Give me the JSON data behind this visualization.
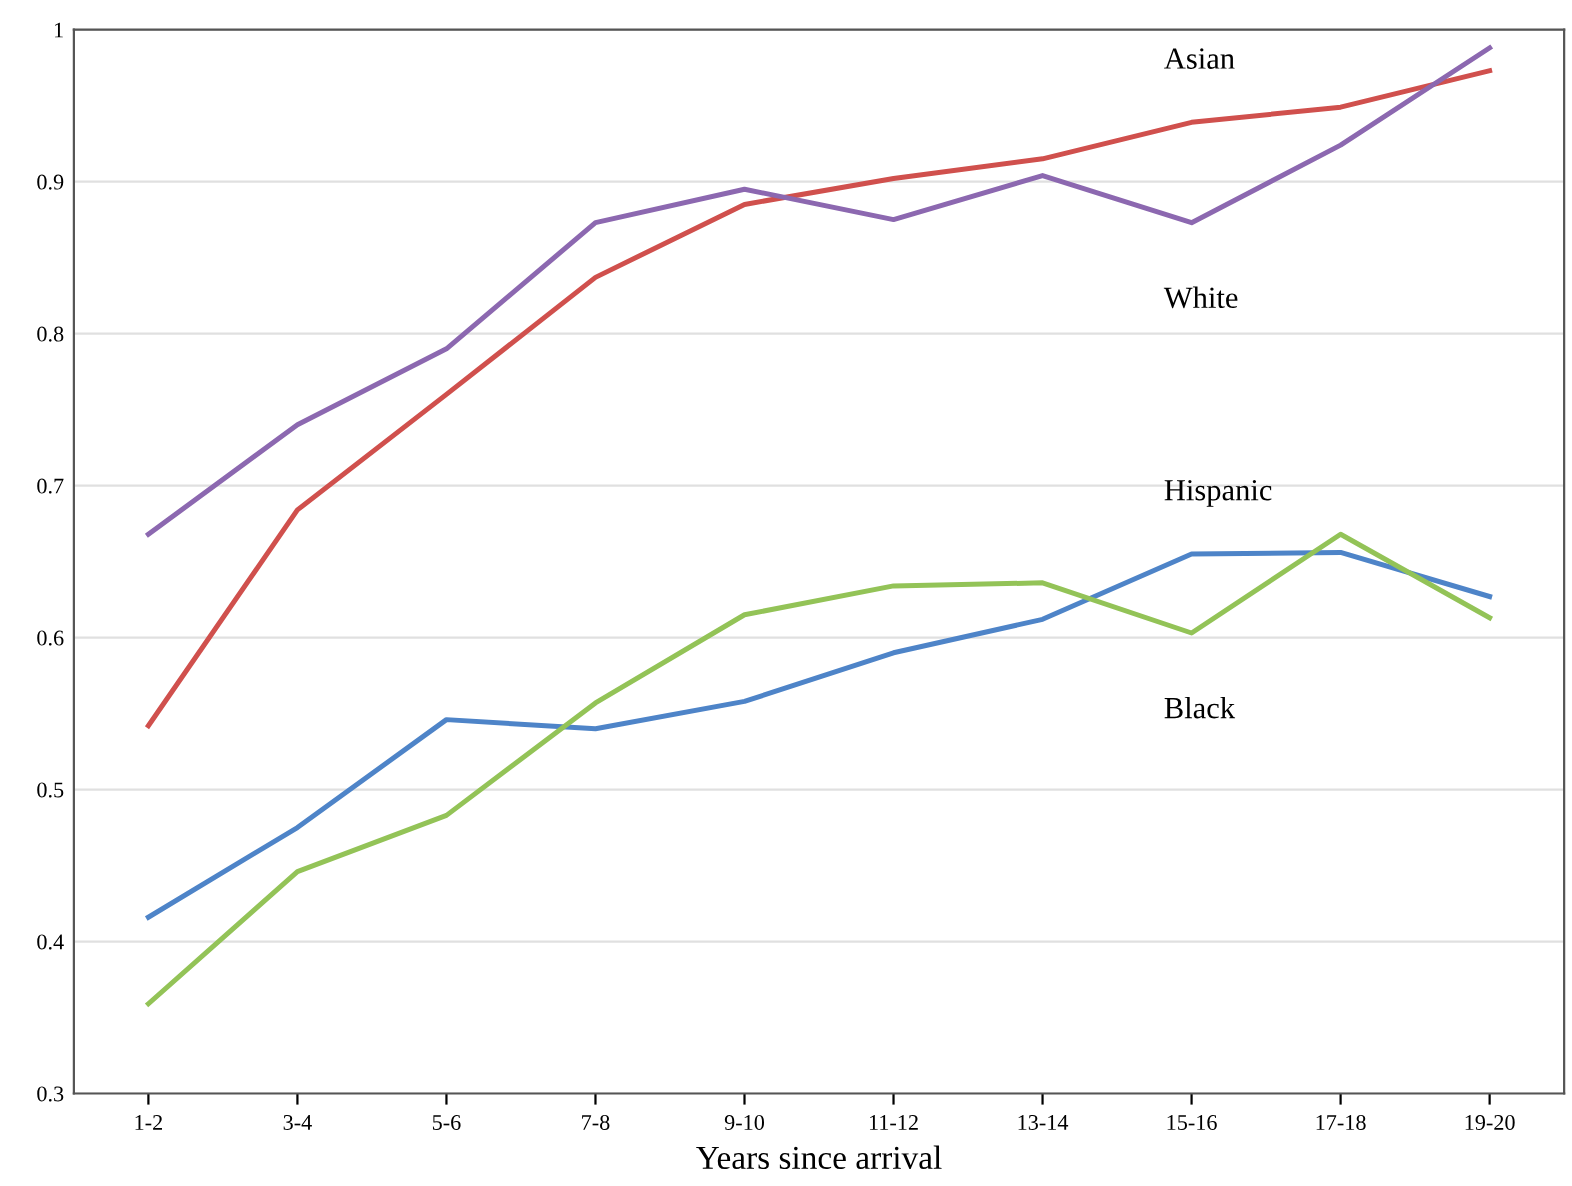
{
  "chart_data": {
    "type": "line",
    "xlabel": "Years since arrival",
    "categories": [
      "1-2",
      "3-4",
      "5-6",
      "7-8",
      "9-10",
      "11-12",
      "13-14",
      "15-16",
      "17-18",
      "19-20"
    ],
    "series": [
      {
        "name": "Asian",
        "color": "#d0504d",
        "values": [
          0.542,
          0.684,
          0.76,
          0.837,
          0.885,
          0.902,
          0.915,
          0.939,
          0.949,
          0.973
        ]
      },
      {
        "name": "White",
        "color": "#8c68b0",
        "values": [
          0.668,
          0.74,
          0.79,
          0.873,
          0.895,
          0.875,
          0.904,
          0.873,
          0.924,
          0.988
        ]
      },
      {
        "name": "Hispanic",
        "color": "#4e84c8",
        "values": [
          0.416,
          0.475,
          0.546,
          0.54,
          0.558,
          0.59,
          0.612,
          0.655,
          0.656,
          0.627
        ]
      },
      {
        "name": "Black",
        "color": "#93c357",
        "values": [
          0.359,
          0.446,
          0.483,
          0.557,
          0.615,
          0.634,
          0.636,
          0.603,
          0.668,
          0.613
        ]
      }
    ],
    "ylim": [
      0.3,
      1
    ],
    "yticks": [
      0.3,
      0.4,
      0.5,
      0.6,
      0.7,
      0.8,
      0.9,
      1
    ],
    "grid": "y",
    "legend": false,
    "marker": "none",
    "line_style": "solid"
  }
}
